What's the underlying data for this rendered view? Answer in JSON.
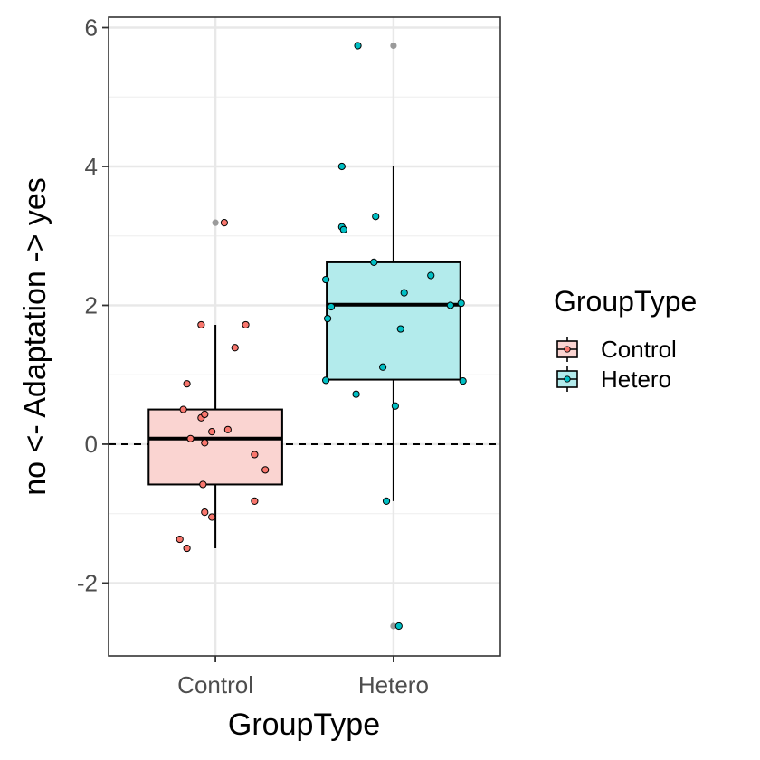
{
  "chart_data": {
    "type": "boxplot",
    "xlabel": "GroupType",
    "ylabel": "no <- Adaptation -> yes",
    "ylim": [
      -3.05,
      6.15
    ],
    "y_ticks": [
      -2,
      0,
      2,
      4,
      6
    ],
    "y_tick_labels": [
      "-2",
      "0",
      "2",
      "4",
      "6"
    ],
    "categories": [
      "Control",
      "Hetero"
    ],
    "reference_line": {
      "y": 0,
      "style": "dashed"
    },
    "grid": true,
    "legend": {
      "title": "GroupType",
      "position": "right",
      "entries": [
        {
          "label": "Control",
          "color": "#f8766d"
        },
        {
          "label": "Hetero",
          "color": "#00bfc4"
        }
      ]
    },
    "boxes": [
      {
        "group": "Control",
        "fill": "#fad4d1",
        "whisker_low": -1.5,
        "q1": -0.58,
        "median": 0.08,
        "q3": 0.5,
        "whisker_high": 1.72,
        "outliers": [
          3.19
        ]
      },
      {
        "group": "Hetero",
        "fill": "#b3ebec",
        "whisker_low": -0.82,
        "q1": 0.93,
        "median": 2.01,
        "q3": 2.62,
        "whisker_high": 4.0,
        "outliers": [
          5.74,
          -2.62
        ]
      }
    ],
    "points": [
      {
        "group": "Control",
        "x": 0.8,
        "y": -1.37
      },
      {
        "group": "Control",
        "x": 0.84,
        "y": -1.5
      },
      {
        "group": "Control",
        "x": 0.82,
        "y": 0.5
      },
      {
        "group": "Control",
        "x": 0.84,
        "y": 0.87
      },
      {
        "group": "Control",
        "x": 0.86,
        "y": 0.08
      },
      {
        "group": "Control",
        "x": 0.92,
        "y": 1.72
      },
      {
        "group": "Control",
        "x": 0.93,
        "y": -0.58
      },
      {
        "group": "Control",
        "x": 0.94,
        "y": -0.98
      },
      {
        "group": "Control",
        "x": 0.92,
        "y": 0.38
      },
      {
        "group": "Control",
        "x": 0.94,
        "y": 0.43
      },
      {
        "group": "Control",
        "x": 0.94,
        "y": 0.02
      },
      {
        "group": "Control",
        "x": 0.98,
        "y": 0.18
      },
      {
        "group": "Control",
        "x": 0.98,
        "y": -1.05
      },
      {
        "group": "Control",
        "x": 1.05,
        "y": 3.19
      },
      {
        "group": "Control",
        "x": 1.07,
        "y": 0.21
      },
      {
        "group": "Control",
        "x": 1.11,
        "y": 1.39
      },
      {
        "group": "Control",
        "x": 1.17,
        "y": 1.72
      },
      {
        "group": "Control",
        "x": 1.22,
        "y": -0.15
      },
      {
        "group": "Control",
        "x": 1.22,
        "y": -0.82
      },
      {
        "group": "Control",
        "x": 1.28,
        "y": -0.37
      },
      {
        "group": "Hetero",
        "x": 1.62,
        "y": 0.92
      },
      {
        "group": "Hetero",
        "x": 1.62,
        "y": 2.37
      },
      {
        "group": "Hetero",
        "x": 1.63,
        "y": 1.81
      },
      {
        "group": "Hetero",
        "x": 1.65,
        "y": 1.98
      },
      {
        "group": "Hetero",
        "x": 1.71,
        "y": 4.0
      },
      {
        "group": "Hetero",
        "x": 1.71,
        "y": 3.13
      },
      {
        "group": "Hetero",
        "x": 1.72,
        "y": 3.09
      },
      {
        "group": "Hetero",
        "x": 1.79,
        "y": 0.72
      },
      {
        "group": "Hetero",
        "x": 1.8,
        "y": 5.74
      },
      {
        "group": "Hetero",
        "x": 1.89,
        "y": 2.62
      },
      {
        "group": "Hetero",
        "x": 1.9,
        "y": 3.28
      },
      {
        "group": "Hetero",
        "x": 1.94,
        "y": 1.11
      },
      {
        "group": "Hetero",
        "x": 1.96,
        "y": -0.82
      },
      {
        "group": "Hetero",
        "x": 2.01,
        "y": 0.55
      },
      {
        "group": "Hetero",
        "x": 2.04,
        "y": 1.66
      },
      {
        "group": "Hetero",
        "x": 2.06,
        "y": 2.18
      },
      {
        "group": "Hetero",
        "x": 2.03,
        "y": -2.62
      },
      {
        "group": "Hetero",
        "x": 2.21,
        "y": 2.43
      },
      {
        "group": "Hetero",
        "x": 2.32,
        "y": 2.0
      },
      {
        "group": "Hetero",
        "x": 2.38,
        "y": 2.03
      },
      {
        "group": "Hetero",
        "x": 2.39,
        "y": 0.91
      }
    ]
  }
}
